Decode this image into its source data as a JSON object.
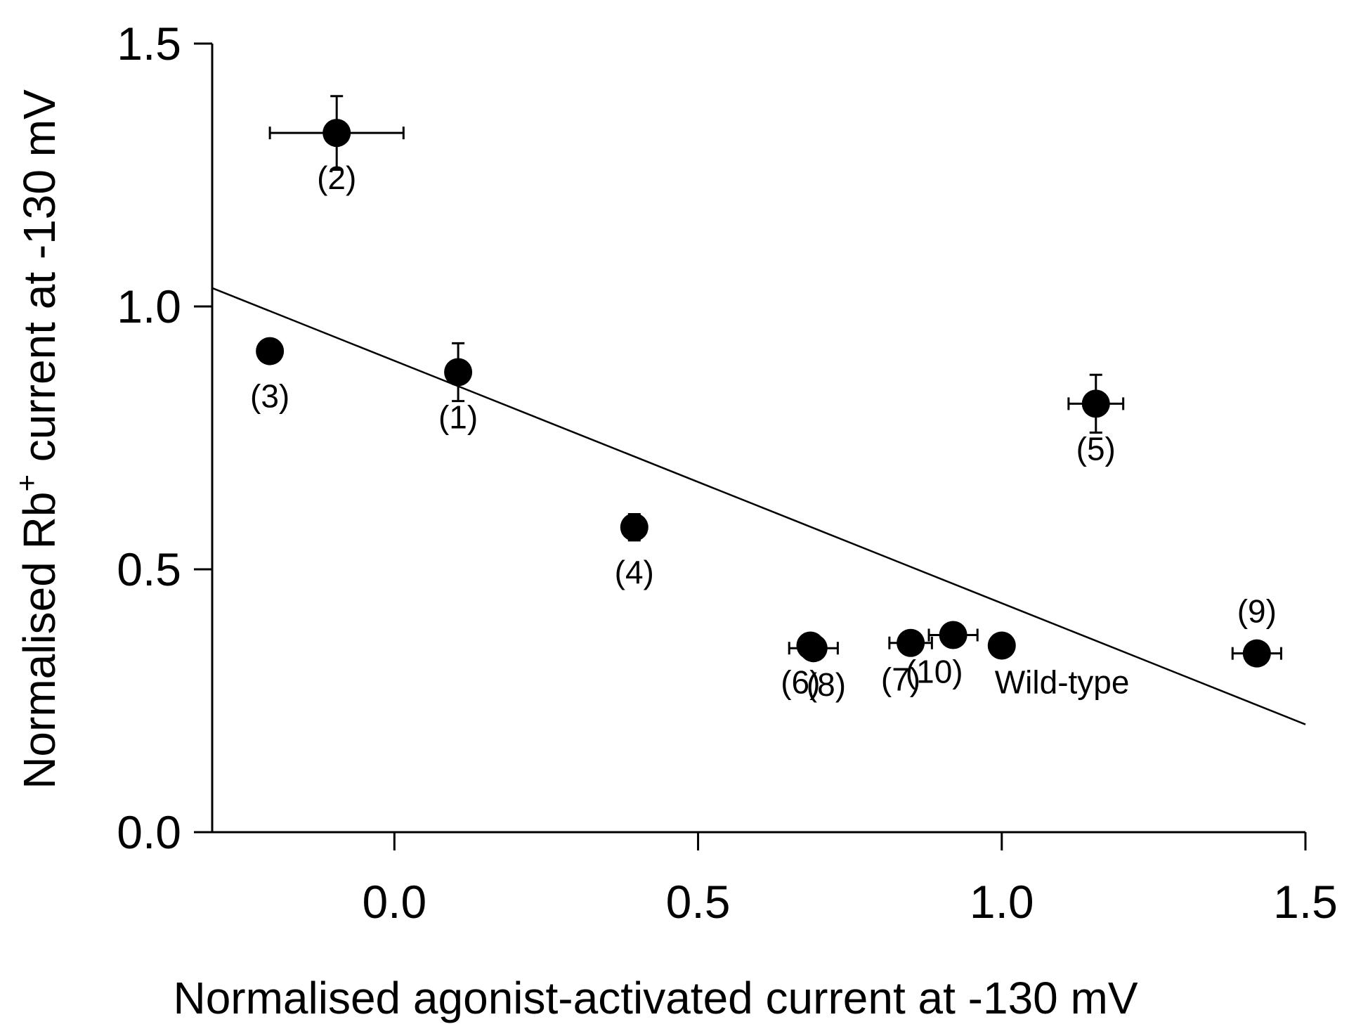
{
  "chart_data": {
    "type": "scatter",
    "title": "",
    "xlabel": "Normalised agonist-activated current at -130 mV",
    "ylabel_main": "Normalised Rb",
    "ylabel_sup": "+",
    "ylabel_rest": " current at -130 mV",
    "xlim": [
      -0.3,
      1.5
    ],
    "ylim": [
      0.0,
      1.5
    ],
    "x_ticks": [
      0.0,
      0.5,
      1.0,
      1.5
    ],
    "x_tick_labels": [
      "0.0",
      "0.5",
      "1.0",
      "1.5"
    ],
    "y_ticks": [
      0.0,
      0.5,
      1.0,
      1.5
    ],
    "y_tick_labels": [
      "0.0",
      "0.5",
      "1.0",
      "1.5"
    ],
    "points": [
      {
        "label": "(1)",
        "x": 0.105,
        "y": 0.875,
        "xerr": 0.0,
        "yerr": 0.055,
        "label_pos": "below"
      },
      {
        "label": "(2)",
        "x": -0.095,
        "y": 1.33,
        "xerr": 0.11,
        "yerr": 0.07,
        "label_pos": "below"
      },
      {
        "label": "(3)",
        "x": -0.205,
        "y": 0.915,
        "xerr": 0.0,
        "yerr": 0.0,
        "label_pos": "below"
      },
      {
        "label": "(4)",
        "x": 0.395,
        "y": 0.58,
        "xerr": 0.0,
        "yerr": 0.025,
        "label_pos": "below"
      },
      {
        "label": "(5)",
        "x": 1.155,
        "y": 0.815,
        "xerr": 0.045,
        "yerr": 0.055,
        "label_pos": "below"
      },
      {
        "label": "(6)",
        "x": 0.685,
        "y": 0.355,
        "xerr": 0.0,
        "yerr": 0.0,
        "label_pos": "below-left"
      },
      {
        "label": "(8)",
        "x": 0.69,
        "y": 0.35,
        "xerr": 0.04,
        "yerr": 0.0,
        "label_pos": "below-right"
      },
      {
        "label": "(7)",
        "x": 0.85,
        "y": 0.36,
        "xerr": 0.035,
        "yerr": 0.0,
        "label_pos": "below-left"
      },
      {
        "label": "(10)",
        "x": 0.92,
        "y": 0.375,
        "xerr": 0.04,
        "yerr": 0.0,
        "label_pos": "below-left"
      },
      {
        "label": "Wild-type",
        "x": 1.0,
        "y": 0.355,
        "xerr": 0.0,
        "yerr": 0.0,
        "label_pos": "below-right"
      },
      {
        "label": "(9)",
        "x": 1.42,
        "y": 0.34,
        "xerr": 0.04,
        "yerr": 0.0,
        "label_pos": "above"
      }
    ],
    "fit_line": {
      "type": "linear",
      "x": [
        -0.3,
        1.5
      ],
      "y": [
        1.035,
        0.205
      ]
    },
    "grid": false,
    "legend": "none"
  }
}
